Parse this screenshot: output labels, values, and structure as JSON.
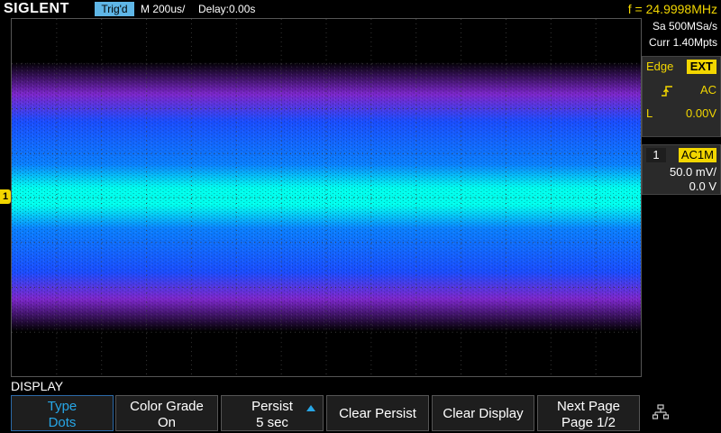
{
  "topbar": {
    "brand": "SIGLENT",
    "trigger_status": "Trig'd",
    "timebase": "M 200us/",
    "delay": "Delay:0.00s",
    "frequency": "f = 24.9998MHz"
  },
  "acquisition": {
    "sample_rate": "Sa 500MSa/s",
    "memory": "Curr 1.40Mpts"
  },
  "trigger": {
    "type": "Edge",
    "source": "EXT",
    "coupling": "AC",
    "level_label": "L",
    "level_value": "0.00V"
  },
  "channel1": {
    "number": "1",
    "coupling": "AC1M",
    "scale": "50.0 mV/",
    "offset": "0.0 V",
    "marker": "1"
  },
  "menu": {
    "title": "DISPLAY",
    "keys": [
      {
        "line1": "Type",
        "line2": "Dots"
      },
      {
        "line1": "Color Grade",
        "line2": "On"
      },
      {
        "line1": "Persist",
        "line2": "5 sec"
      },
      {
        "line1": "Clear Persist",
        "line2": ""
      },
      {
        "line1": "Clear Display",
        "line2": ""
      },
      {
        "line1": "Next Page",
        "line2": "Page 1/2"
      }
    ]
  },
  "colors": {
    "accent": "#27a6e6",
    "channel1": "#f2d600",
    "grade_low": "#8a2be2",
    "grade_mid": "#1a4dff",
    "grade_high": "#00ffee"
  },
  "icons": {
    "trigger_slope": "rising-edge-icon",
    "network": "network-icon"
  }
}
